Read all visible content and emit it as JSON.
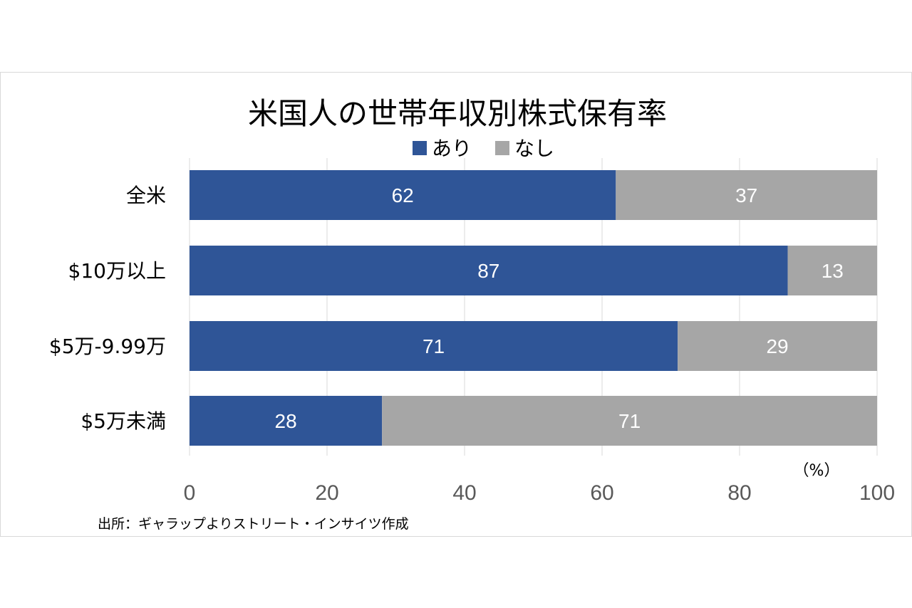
{
  "chart_data": {
    "type": "bar",
    "orientation": "horizontal",
    "stacked": true,
    "title": "米国人の世帯年収別株式保有率",
    "categories": [
      "全米",
      "$10万以上",
      "$5万-9.99万",
      "$5万未満"
    ],
    "series": [
      {
        "name": "あり",
        "color": "#2f5597",
        "values": [
          62,
          87,
          71,
          28
        ]
      },
      {
        "name": "なし",
        "color": "#a6a6a6",
        "values": [
          37,
          13,
          29,
          71
        ]
      }
    ],
    "xlim": [
      0,
      100
    ],
    "xticks": [
      "0",
      "20",
      "40",
      "60",
      "80",
      "100"
    ],
    "unit": "（%）",
    "grid": true,
    "legend_position": "top"
  },
  "source_note": "出所：ギャラップよりストリート・インサイツ作成"
}
